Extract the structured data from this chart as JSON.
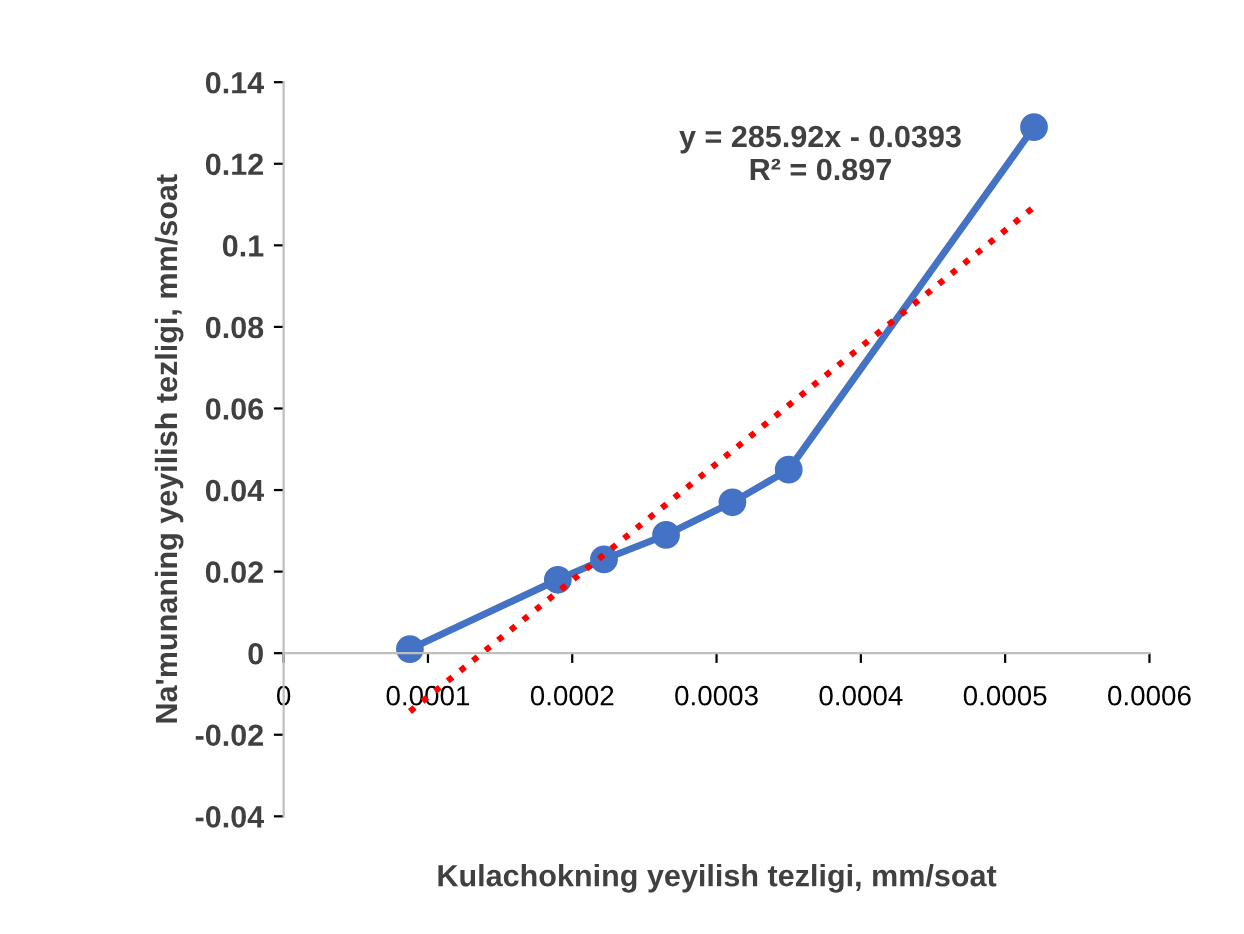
{
  "chart_data": {
    "type": "line",
    "xlabel": "Kulachokning yeyilish tezligi, mm/soat",
    "ylabel": "Na'munaning yeyilish tezligi, mm/soat",
    "series": [
      {
        "color": "#4472c4",
        "marker": "circle",
        "line_style": "solid",
        "x": [
          8.75e-05,
          0.00019,
          0.000222,
          0.000265,
          0.000311,
          0.00035,
          0.00052
        ],
        "values": [
          0.001,
          0.018,
          0.023,
          0.029,
          0.037,
          0.045,
          0.129
        ]
      },
      {
        "color": "#ff0000",
        "marker": "none",
        "line_style": "dotted",
        "x": [
          8.75e-05,
          0.00052
        ],
        "values": [
          -0.0143,
          0.1094
        ]
      }
    ],
    "annotations": [
      "y = 285.92x - 0.0393\nR² = 0.897"
    ],
    "xlim": [
      0,
      0.0006
    ],
    "xticks": [
      0,
      0.0001,
      0.0002,
      0.0003,
      0.0004,
      0.0005,
      0.0006
    ],
    "ylim": [
      -0.04,
      0.14
    ],
    "yticks": [
      -0.04,
      -0.02,
      0,
      0.02,
      0.04,
      0.06,
      0.08,
      0.1,
      0.12,
      0.14
    ],
    "grid": false
  }
}
